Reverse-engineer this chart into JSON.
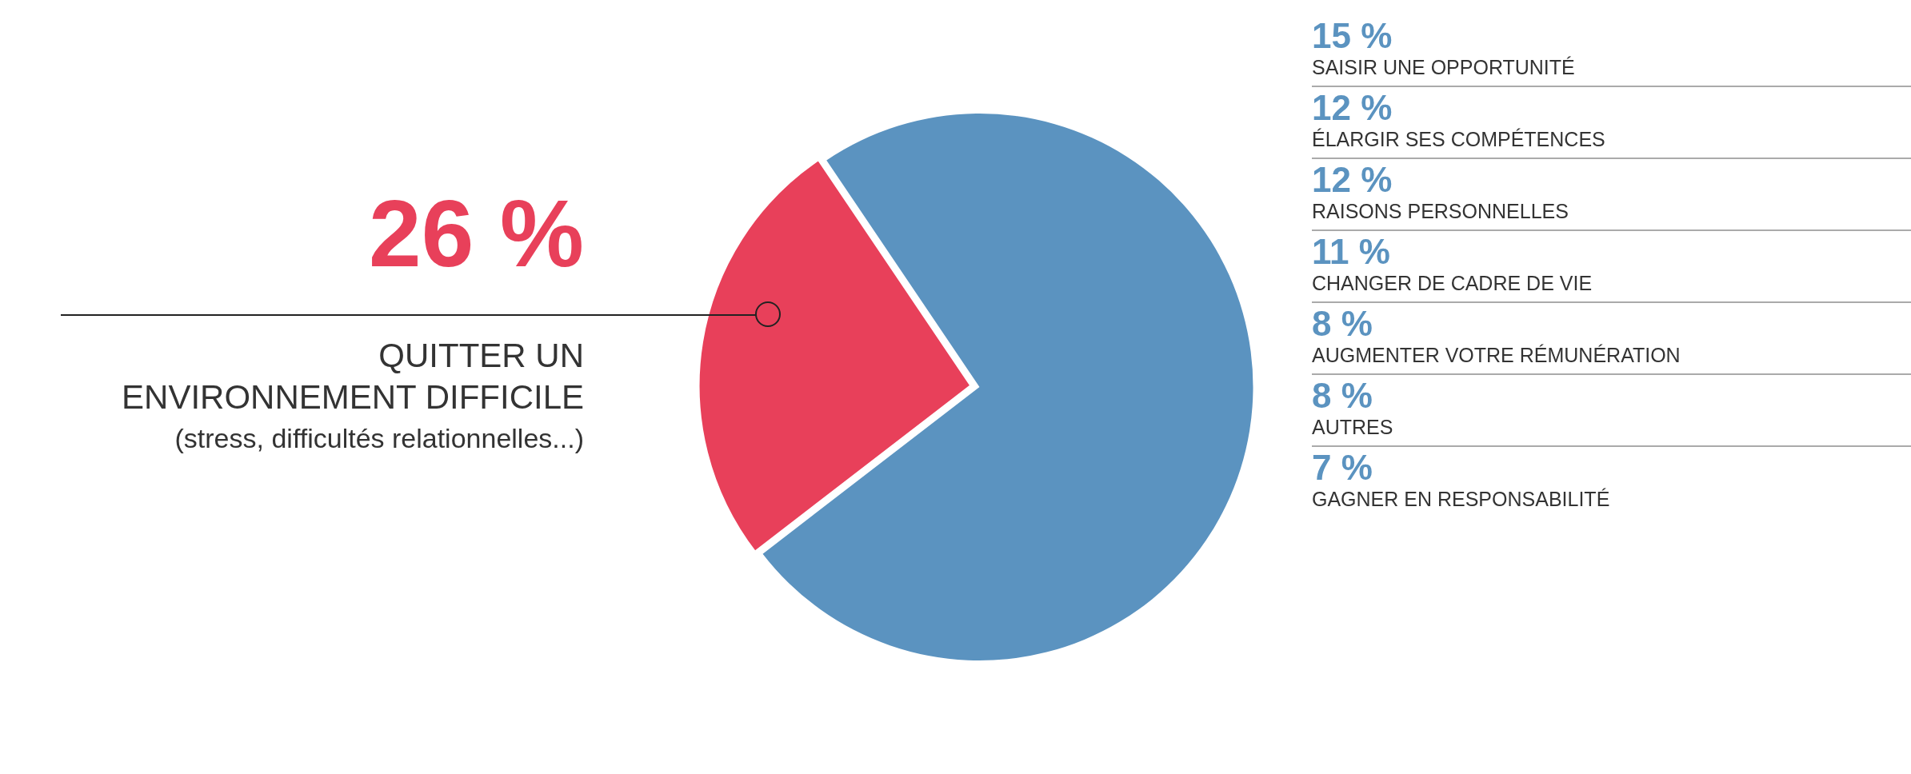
{
  "chart_data": {
    "type": "pie",
    "categories": [
      "QUITTER UN\nENVIRONNEMENT DIFFICILE\n(stress, difficultés relationnelles...)",
      null
    ],
    "values": [
      26,
      74
    ],
    "value_labels": [
      "26 %",
      null
    ],
    "colors": [
      "#e8405a",
      "#5b93c0"
    ],
    "annotations": [
      "15 %\nSAISIR UNE OPPORTUNITÉ",
      "12 %\nÉLARGIR SES COMPÉTENCES",
      "12 %\nRAISONS PERSONNELLES",
      "11 %\nCHANGER DE CADRE DE VIE",
      "8 %\nAUGMENTER VOTRE RÉMUNÉRATION",
      "8 %\nAUTRES",
      "7 %\nGAGNER EN RESPONSABILITÉ"
    ],
    "legend": false
  }
}
